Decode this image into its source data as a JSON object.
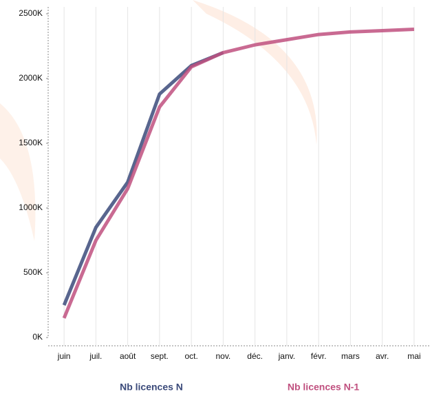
{
  "chart_data": {
    "type": "line",
    "categories": [
      "juin",
      "juil.",
      "août",
      "sept.",
      "oct.",
      "nov.",
      "déc.",
      "janv.",
      "févr.",
      "mars",
      "avr.",
      "mai"
    ],
    "series": [
      {
        "name": "Nb licences N",
        "color": "#3b4a7a",
        "values": [
          250,
          850,
          1200,
          1880,
          2100,
          2200,
          null,
          null,
          null,
          null,
          null,
          null
        ]
      },
      {
        "name": "Nb licences N-1",
        "color": "#c0507f",
        "values": [
          150,
          750,
          1150,
          1780,
          2090,
          2200,
          2260,
          2300,
          2340,
          2360,
          2370,
          2380
        ]
      }
    ],
    "ylim": [
      0,
      2500
    ],
    "yticks": [
      {
        "value": 0,
        "label": "0K"
      },
      {
        "value": 500,
        "label": "500K"
      },
      {
        "value": 1000,
        "label": "1000K"
      },
      {
        "value": 1500,
        "label": "1500K"
      },
      {
        "value": 2000,
        "label": "2000K"
      },
      {
        "value": 2500,
        "label": "2500K"
      }
    ],
    "grid": true
  }
}
